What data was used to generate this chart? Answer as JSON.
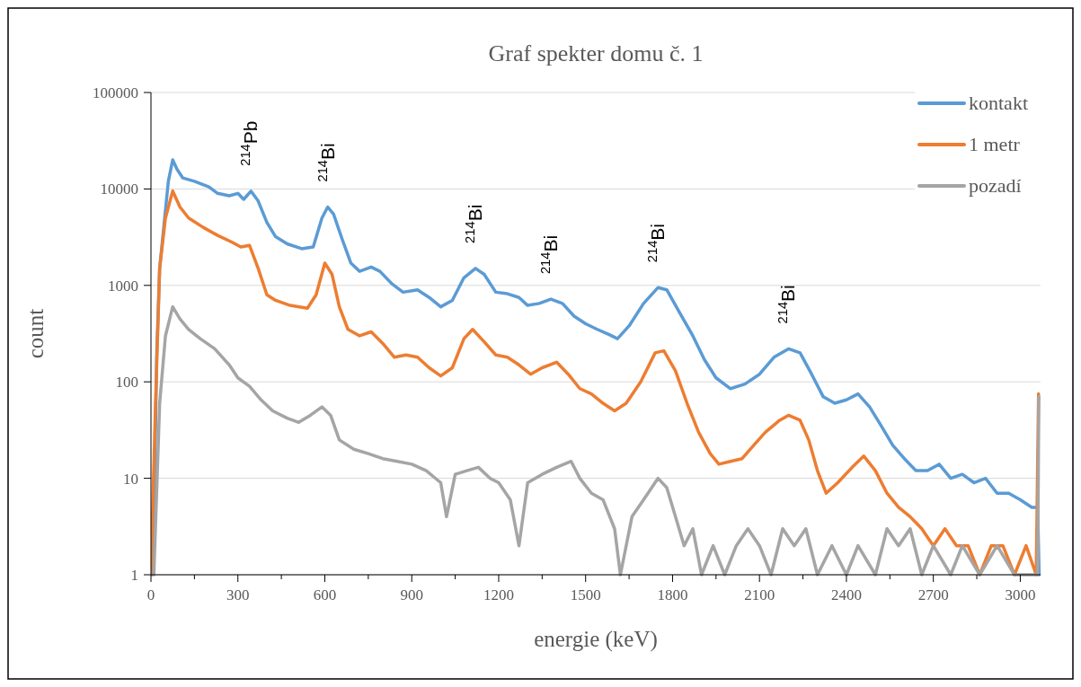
{
  "chart_data": {
    "type": "line",
    "title": "Graf spekter domu č. 1",
    "xlabel": "energie (keV)",
    "ylabel": "count",
    "log": "y",
    "grid": "y",
    "legend": "top right",
    "line_style": "solid",
    "marker": "none",
    "xlim": [
      0,
      3070
    ],
    "xticks": [
      0,
      300,
      600,
      900,
      1200,
      1500,
      1800,
      2100,
      2400,
      2700,
      3000
    ],
    "ylim": [
      1,
      100000
    ],
    "yticks": [
      1,
      10,
      100,
      1000,
      10000,
      100000
    ],
    "annotations": [
      {
        "text": "$^{214}$Pb",
        "x": 345,
        "y": 9500
      },
      {
        "text": "$^{214}$Bi",
        "x": 610,
        "y": 6500
      },
      {
        "text": "$^{214}$Bi",
        "x": 1120,
        "y": 1500
      },
      {
        "text": "$^{214}$Bi",
        "x": 1380,
        "y": 720
      },
      {
        "text": "$^{214}$Bi",
        "x": 1750,
        "y": 950
      },
      {
        "text": "$^{214}$Bi",
        "x": 2200,
        "y": 220
      }
    ],
    "series": [
      {
        "name": "kontakt",
        "color": "#5b9bd5",
        "x": [
          0,
          10,
          20,
          30,
          40,
          50,
          60,
          75,
          90,
          110,
          150,
          200,
          230,
          270,
          300,
          320,
          345,
          370,
          400,
          430,
          470,
          520,
          560,
          590,
          610,
          630,
          660,
          690,
          720,
          760,
          790,
          830,
          870,
          920,
          960,
          1000,
          1040,
          1080,
          1120,
          1150,
          1190,
          1230,
          1270,
          1300,
          1340,
          1380,
          1420,
          1460,
          1500,
          1540,
          1580,
          1610,
          1650,
          1700,
          1750,
          1780,
          1820,
          1870,
          1910,
          1950,
          2000,
          2050,
          2100,
          2150,
          2200,
          2240,
          2280,
          2320,
          2360,
          2400,
          2440,
          2480,
          2520,
          2560,
          2600,
          2640,
          2680,
          2720,
          2760,
          2800,
          2840,
          2880,
          2920,
          2960,
          3000,
          3040,
          3060,
          3065
        ],
        "values": [
          1,
          3,
          200,
          1500,
          3000,
          6000,
          12000,
          20000,
          16000,
          13000,
          12000,
          10500,
          9000,
          8500,
          9000,
          7800,
          9500,
          7500,
          4500,
          3200,
          2700,
          2400,
          2500,
          5000,
          6500,
          5500,
          3000,
          1700,
          1400,
          1550,
          1400,
          1050,
          850,
          900,
          750,
          600,
          700,
          1200,
          1500,
          1300,
          850,
          820,
          750,
          620,
          650,
          720,
          650,
          480,
          400,
          350,
          310,
          280,
          380,
          650,
          950,
          900,
          550,
          300,
          170,
          110,
          85,
          95,
          120,
          180,
          220,
          200,
          120,
          70,
          60,
          65,
          75,
          55,
          35,
          22,
          16,
          12,
          12,
          14,
          10,
          11,
          9,
          10,
          7,
          7,
          6,
          5,
          5,
          1
        ]
      },
      {
        "name": "1 metr",
        "color": "#ed7d31",
        "x": [
          0,
          15,
          30,
          50,
          75,
          100,
          130,
          180,
          230,
          280,
          310,
          340,
          370,
          400,
          430,
          480,
          540,
          570,
          600,
          625,
          650,
          680,
          720,
          760,
          800,
          840,
          880,
          920,
          960,
          1000,
          1040,
          1080,
          1110,
          1150,
          1190,
          1230,
          1270,
          1310,
          1350,
          1400,
          1440,
          1480,
          1520,
          1560,
          1600,
          1640,
          1690,
          1740,
          1770,
          1810,
          1850,
          1890,
          1930,
          1960,
          2000,
          2040,
          2080,
          2120,
          2170,
          2200,
          2240,
          2270,
          2300,
          2330,
          2370,
          2420,
          2460,
          2500,
          2540,
          2580,
          2620,
          2660,
          2700,
          2740,
          2780,
          2820,
          2860,
          2900,
          2940,
          2980,
          3020,
          3055,
          3063
        ],
        "values": [
          1,
          50,
          1500,
          5000,
          9500,
          6500,
          5000,
          4000,
          3300,
          2800,
          2500,
          2600,
          1500,
          800,
          700,
          620,
          580,
          800,
          1700,
          1300,
          600,
          350,
          300,
          330,
          250,
          180,
          190,
          180,
          140,
          115,
          140,
          280,
          350,
          260,
          190,
          180,
          150,
          120,
          140,
          160,
          120,
          85,
          75,
          60,
          50,
          60,
          100,
          200,
          210,
          130,
          60,
          30,
          18,
          14,
          15,
          16,
          22,
          30,
          40,
          45,
          40,
          25,
          12,
          7,
          9,
          13,
          17,
          12,
          7,
          5,
          4,
          3,
          2,
          3,
          2,
          2,
          1,
          2,
          2,
          1,
          2,
          1,
          75
        ]
      },
      {
        "name": "pozadí",
        "color": "#a5a5a5",
        "x": [
          0,
          10,
          30,
          50,
          75,
          100,
          130,
          170,
          220,
          270,
          300,
          340,
          380,
          420,
          470,
          510,
          550,
          590,
          620,
          650,
          700,
          750,
          800,
          850,
          900,
          950,
          1000,
          1020,
          1050,
          1090,
          1130,
          1170,
          1200,
          1240,
          1270,
          1300,
          1350,
          1400,
          1450,
          1480,
          1520,
          1560,
          1600,
          1620,
          1660,
          1700,
          1750,
          1780,
          1810,
          1840,
          1870,
          1900,
          1940,
          1980,
          2020,
          2060,
          2100,
          2140,
          2180,
          2220,
          2260,
          2300,
          2350,
          2400,
          2440,
          2500,
          2540,
          2580,
          2620,
          2660,
          2700,
          2760,
          2800,
          2860,
          2920,
          2980,
          3040,
          3060,
          3064
        ],
        "values": [
          1,
          1,
          60,
          300,
          600,
          450,
          350,
          280,
          220,
          150,
          110,
          90,
          65,
          50,
          42,
          38,
          45,
          55,
          45,
          25,
          20,
          18,
          16,
          15,
          14,
          12,
          9,
          4,
          11,
          12,
          13,
          10,
          9,
          6,
          2,
          9,
          11,
          13,
          15,
          10,
          7,
          6,
          3,
          1,
          4,
          6,
          10,
          8,
          4,
          2,
          3,
          1,
          2,
          1,
          2,
          3,
          2,
          1,
          3,
          2,
          3,
          1,
          2,
          1,
          2,
          1,
          3,
          2,
          3,
          1,
          2,
          1,
          2,
          1,
          2,
          1,
          1,
          1,
          70
        ]
      }
    ]
  }
}
